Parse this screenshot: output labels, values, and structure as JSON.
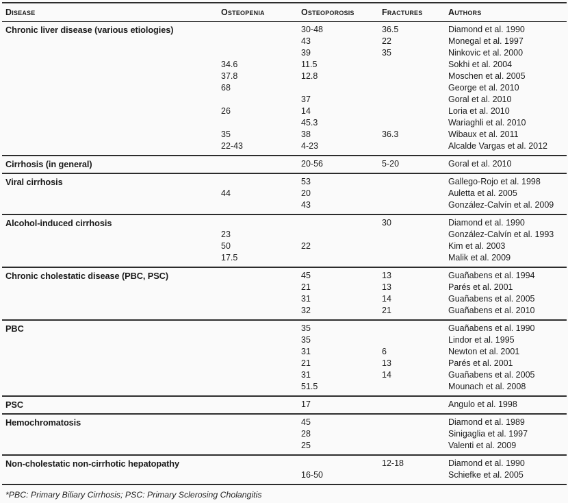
{
  "table": {
    "columns": [
      {
        "key": "disease",
        "label": "Disease"
      },
      {
        "key": "osteopenia",
        "label": "Osteopenia"
      },
      {
        "key": "osteoporosis",
        "label": "Osteoporosis"
      },
      {
        "key": "fractures",
        "label": "Fractures"
      },
      {
        "key": "authors",
        "label": "Authors"
      }
    ],
    "sections": [
      {
        "disease": "Chronic liver disease (various etiologies)",
        "rows": [
          {
            "osteopenia": "",
            "osteoporosis": "30-48",
            "fractures": "36.5",
            "authors": "Diamond et al. 1990"
          },
          {
            "osteopenia": "",
            "osteoporosis": "43",
            "fractures": "22",
            "authors": "Monegal et al. 1997"
          },
          {
            "osteopenia": "",
            "osteoporosis": "39",
            "fractures": "35",
            "authors": "Ninkovic et al. 2000"
          },
          {
            "osteopenia": "34.6",
            "osteoporosis": "11.5",
            "fractures": "",
            "authors": "Sokhi et al. 2004"
          },
          {
            "osteopenia": "37.8",
            "osteoporosis": "12.8",
            "fractures": "",
            "authors": "Moschen et al. 2005"
          },
          {
            "osteopenia": "68",
            "osteoporosis": "",
            "fractures": "",
            "authors": "George et al. 2010"
          },
          {
            "osteopenia": "",
            "osteoporosis": "37",
            "fractures": "",
            "authors": "Goral et al. 2010"
          },
          {
            "osteopenia": "26",
            "osteoporosis": "14",
            "fractures": "",
            "authors": "Loria et al. 2010"
          },
          {
            "osteopenia": "",
            "osteoporosis": "45.3",
            "fractures": "",
            "authors": "Wariaghli et al. 2010"
          },
          {
            "osteopenia": "35",
            "osteoporosis": "38",
            "fractures": "36.3",
            "authors": "Wibaux et al. 2011"
          },
          {
            "osteopenia": "22-43",
            "osteoporosis": "4-23",
            "fractures": "",
            "authors": "Alcalde Vargas et al. 2012"
          }
        ]
      },
      {
        "disease": "Cirrhosis (in general)",
        "rows": [
          {
            "osteopenia": "",
            "osteoporosis": "20-56",
            "fractures": "5-20",
            "authors": "Goral et al. 2010"
          }
        ]
      },
      {
        "disease": "Viral cirrhosis",
        "rows": [
          {
            "osteopenia": "",
            "osteoporosis": "53",
            "fractures": "",
            "authors": "Gallego-Rojo et al. 1998"
          },
          {
            "osteopenia": "44",
            "osteoporosis": "20",
            "fractures": "",
            "authors": "Auletta et al. 2005"
          },
          {
            "osteopenia": "",
            "osteoporosis": "43",
            "fractures": "",
            "authors": "González-Calvín et al. 2009"
          }
        ]
      },
      {
        "disease": "Alcohol-induced cirrhosis",
        "rows": [
          {
            "osteopenia": "",
            "osteoporosis": "",
            "fractures": "30",
            "authors": "Diamond et al. 1990"
          },
          {
            "osteopenia": "23",
            "osteoporosis": "",
            "fractures": "",
            "authors": "González-Calvín et al. 1993"
          },
          {
            "osteopenia": "50",
            "osteoporosis": "22",
            "fractures": "",
            "authors": "Kim et al. 2003"
          },
          {
            "osteopenia": "17.5",
            "osteoporosis": "",
            "fractures": "",
            "authors": "Malik et al. 2009"
          }
        ]
      },
      {
        "disease": "Chronic cholestatic disease (PBC, PSC)",
        "rows": [
          {
            "osteopenia": "",
            "osteoporosis": "45",
            "fractures": "13",
            "authors": "Guañabens et al. 1994"
          },
          {
            "osteopenia": "",
            "osteoporosis": "21",
            "fractures": "13",
            "authors": "Parés et al. 2001"
          },
          {
            "osteopenia": "",
            "osteoporosis": "31",
            "fractures": "14",
            "authors": "Guañabens et al. 2005"
          },
          {
            "osteopenia": "",
            "osteoporosis": "32",
            "fractures": "21",
            "authors": "Guañabens et al. 2010"
          }
        ]
      },
      {
        "disease": "PBC",
        "rows": [
          {
            "osteopenia": "",
            "osteoporosis": "35",
            "fractures": "",
            "authors": "Guañabens et al. 1990"
          },
          {
            "osteopenia": "",
            "osteoporosis": "35",
            "fractures": "",
            "authors": "Lindor et al. 1995"
          },
          {
            "osteopenia": "",
            "osteoporosis": "31",
            "fractures": "6",
            "authors": "Newton et al. 2001"
          },
          {
            "osteopenia": "",
            "osteoporosis": "21",
            "fractures": "13",
            "authors": "Parés et al. 2001"
          },
          {
            "osteopenia": "",
            "osteoporosis": "31",
            "fractures": "14",
            "authors": "Guañabens et al. 2005"
          },
          {
            "osteopenia": "",
            "osteoporosis": "51.5",
            "fractures": "",
            "authors": "Mounach et al. 2008"
          }
        ]
      },
      {
        "disease": "PSC",
        "rows": [
          {
            "osteopenia": "",
            "osteoporosis": "17",
            "fractures": "",
            "authors": "Angulo et al. 1998"
          }
        ]
      },
      {
        "disease": "Hemochromatosis",
        "rows": [
          {
            "osteopenia": "",
            "osteoporosis": "45",
            "fractures": "",
            "authors": "Diamond et al. 1989"
          },
          {
            "osteopenia": "",
            "osteoporosis": "28",
            "fractures": "",
            "authors": "Sinigaglia et al. 1997"
          },
          {
            "osteopenia": "",
            "osteoporosis": "25",
            "fractures": "",
            "authors": "Valenti et al. 2009"
          }
        ]
      },
      {
        "disease": "Non-cholestatic non-cirrhotic hepatopathy",
        "rows": [
          {
            "osteopenia": "",
            "osteoporosis": "",
            "fractures": "12-18",
            "authors": "Diamond et al. 1990"
          },
          {
            "osteopenia": "",
            "osteoporosis": "16-50",
            "fractures": "",
            "authors": "Schiefke et al. 2005"
          }
        ]
      }
    ],
    "footnote": "*PBC: Primary Biliary Cirrhosis; PSC: Primary Sclerosing Cholangitis"
  },
  "colors": {
    "background": "#fafafa",
    "text": "#1b1b1b",
    "rule": "#2c2c2c"
  }
}
